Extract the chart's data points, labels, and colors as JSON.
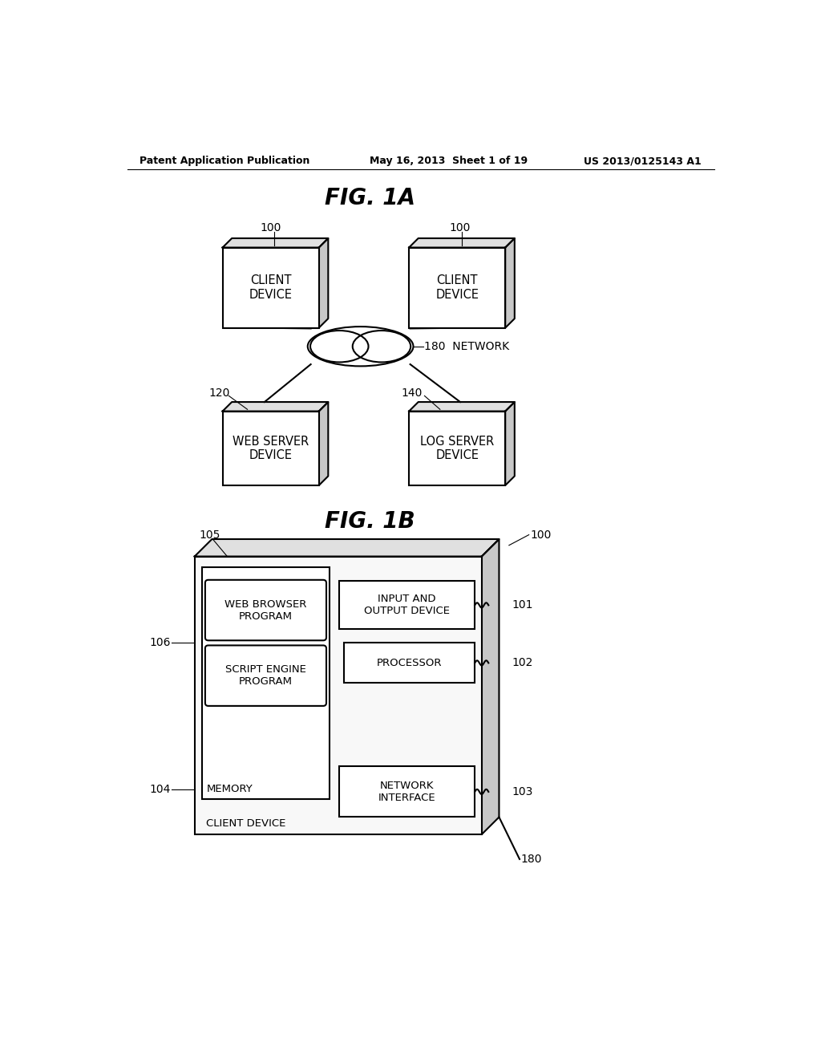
{
  "bg_color": "#ffffff",
  "header_left": "Patent Application Publication",
  "header_center": "May 16, 2013  Sheet 1 of 19",
  "header_right": "US 2013/0125143 A1",
  "fig1a_title": "FIG. 1A",
  "fig1b_title": "FIG. 1B",
  "line_color": "#000000",
  "box_fill": "#ffffff",
  "top_face_color": "#e0e0e0",
  "right_face_color": "#c8c8c8"
}
